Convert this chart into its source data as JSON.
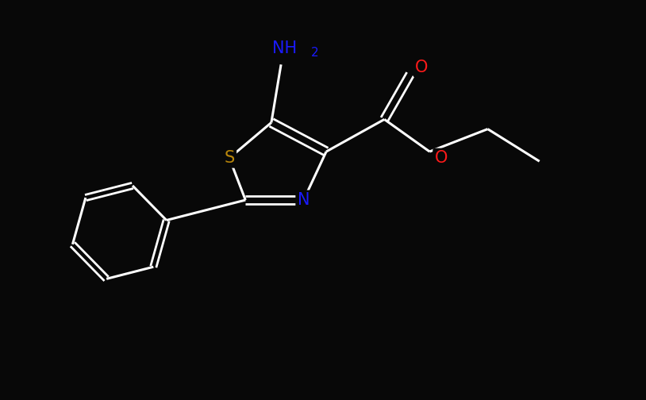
{
  "background_color": "#080808",
  "atom_colors": {
    "C": "#ffffff",
    "N": "#1a1aff",
    "O": "#ff1a1a",
    "S": "#b8860b",
    "H": "#ffffff"
  },
  "bond_color": "#ffffff",
  "figsize": [
    8.14,
    5.04
  ],
  "dpi": 100,
  "xlim": [
    0,
    10
  ],
  "ylim": [
    0,
    6.2
  ]
}
